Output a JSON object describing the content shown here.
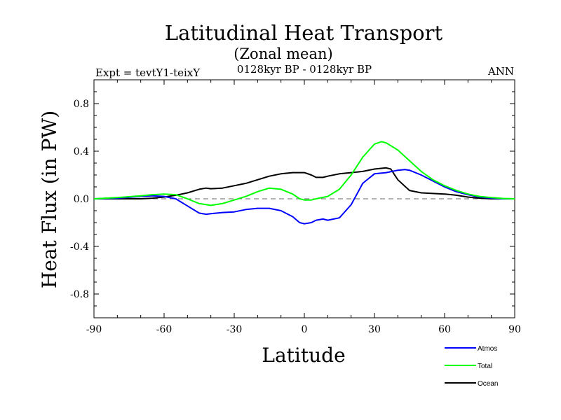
{
  "chart_data": {
    "type": "line",
    "title": "Latitudinal Heat Transport",
    "subtitle": "(Zonal mean)",
    "period": "0128kyr BP - 0128kyr BP",
    "experiment": "Expt = tevtY1-teixY",
    "season": "ANN",
    "xlabel": "Latitude",
    "ylabel": "Heat Flux (in PW)",
    "xlim": [
      -90,
      90
    ],
    "ylim": [
      -1.0,
      1.0
    ],
    "xticks": [
      -90,
      -60,
      -30,
      0,
      30,
      60,
      90
    ],
    "xtick_labels": [
      "-90",
      "-60",
      "-30",
      "0",
      "30",
      "60",
      "90"
    ],
    "yticks": [
      -0.8,
      -0.4,
      0.0,
      0.4,
      0.8
    ],
    "ytick_labels": [
      "-0.8",
      "-0.4",
      "0.0",
      "0.4",
      "0.8"
    ],
    "zero_line": "dashed",
    "legend_position": "bottom-right",
    "series": [
      {
        "name": "Atmos",
        "color": "#0000ff",
        "x": [
          -90,
          -80,
          -70,
          -65,
          -60,
          -55,
          -50,
          -45,
          -42,
          -40,
          -35,
          -30,
          -25,
          -20,
          -15,
          -10,
          -5,
          -2,
          0,
          3,
          5,
          8,
          10,
          15,
          20,
          25,
          30,
          35,
          40,
          43,
          45,
          50,
          55,
          60,
          65,
          70,
          75,
          80,
          85,
          90
        ],
        "values": [
          0,
          0.005,
          0.02,
          0.025,
          0.02,
          0.0,
          -0.06,
          -0.12,
          -0.13,
          -0.125,
          -0.115,
          -0.11,
          -0.09,
          -0.08,
          -0.08,
          -0.1,
          -0.15,
          -0.2,
          -0.21,
          -0.2,
          -0.18,
          -0.17,
          -0.18,
          -0.16,
          -0.05,
          0.13,
          0.21,
          0.22,
          0.24,
          0.245,
          0.24,
          0.2,
          0.15,
          0.1,
          0.06,
          0.035,
          0.015,
          0.005,
          0.0,
          0
        ]
      },
      {
        "name": "Total",
        "color": "#00ff00",
        "x": [
          -90,
          -80,
          -70,
          -65,
          -60,
          -55,
          -50,
          -45,
          -40,
          -35,
          -30,
          -25,
          -20,
          -15,
          -10,
          -5,
          -2,
          0,
          3,
          5,
          10,
          15,
          20,
          25,
          30,
          33,
          35,
          40,
          45,
          50,
          55,
          60,
          65,
          70,
          75,
          80,
          85,
          90
        ],
        "values": [
          0,
          0.01,
          0.025,
          0.035,
          0.04,
          0.035,
          0.0,
          -0.04,
          -0.055,
          -0.04,
          -0.01,
          0.02,
          0.06,
          0.09,
          0.08,
          0.04,
          0.0,
          -0.01,
          -0.01,
          0.0,
          0.02,
          0.08,
          0.2,
          0.35,
          0.46,
          0.48,
          0.47,
          0.41,
          0.32,
          0.23,
          0.16,
          0.11,
          0.07,
          0.04,
          0.02,
          0.01,
          0.003,
          0
        ]
      },
      {
        "name": "Ocean",
        "color": "#000000",
        "x": [
          -90,
          -80,
          -70,
          -65,
          -60,
          -55,
          -50,
          -45,
          -42,
          -40,
          -35,
          -30,
          -25,
          -20,
          -15,
          -10,
          -5,
          0,
          3,
          5,
          8,
          10,
          15,
          20,
          25,
          30,
          35,
          37,
          40,
          45,
          50,
          55,
          60,
          65,
          70,
          75,
          80,
          85,
          90
        ],
        "values": [
          0,
          0.0,
          0.0,
          0.005,
          0.015,
          0.03,
          0.05,
          0.08,
          0.09,
          0.085,
          0.09,
          0.11,
          0.13,
          0.16,
          0.19,
          0.21,
          0.22,
          0.22,
          0.2,
          0.18,
          0.18,
          0.19,
          0.21,
          0.22,
          0.23,
          0.25,
          0.26,
          0.25,
          0.16,
          0.07,
          0.05,
          0.045,
          0.04,
          0.03,
          0.015,
          0.005,
          0.0,
          0.0,
          0
        ]
      }
    ]
  }
}
